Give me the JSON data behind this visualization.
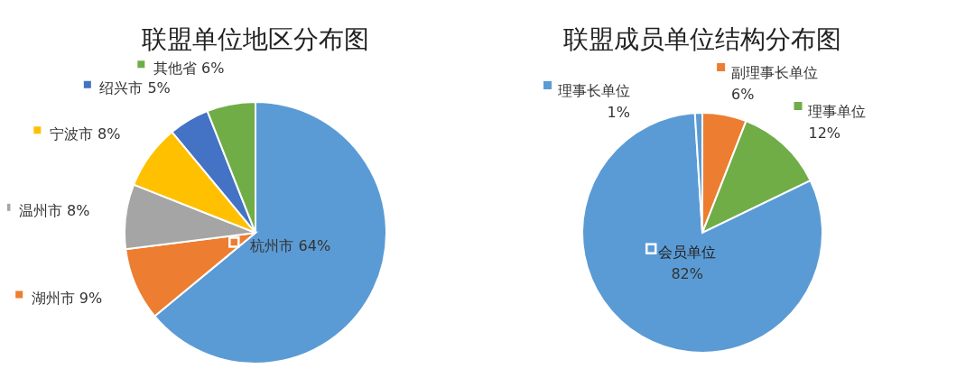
{
  "chart_data": [
    {
      "type": "pie",
      "legend": "left",
      "title": "联盟单位地区分布图",
      "categories": [
        "杭州市",
        "湖州市",
        "温州市",
        "宁波市",
        "绍兴市",
        "其他省"
      ],
      "values": [
        64,
        9,
        8,
        8,
        5,
        6
      ],
      "value_labels": [
        "64%",
        "9%",
        "8%",
        "8%",
        "5%",
        "6%"
      ],
      "colors": [
        "#5b9bd5",
        "#ed7d31",
        "#a5a5a5",
        "#ffc000",
        "#4472c4",
        "#70ad47"
      ]
    },
    {
      "type": "pie",
      "legend": "top",
      "title": "联盟成员单位结构分布图",
      "categories": [
        "副理事长单位",
        "理事单位",
        "会员单位",
        "理事长单位"
      ],
      "values": [
        6,
        12,
        82,
        1
      ],
      "value_labels": [
        "6%",
        "12%",
        "82%",
        "1%"
      ],
      "colors": [
        "#ed7d31",
        "#70ad47",
        "#5b9bd5",
        "#5b9bd5"
      ]
    }
  ]
}
